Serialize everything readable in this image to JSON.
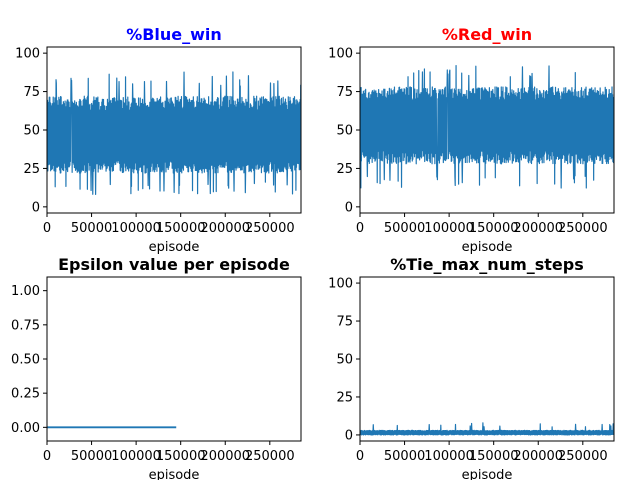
{
  "chart_data": [
    {
      "type": "line",
      "title": "%Blue_win",
      "title_color": "#0000ff",
      "xlabel": "episode",
      "ylabel": "",
      "xlim": [
        0,
        285000
      ],
      "ylim": [
        -4,
        104
      ],
      "xticks": [
        0,
        50000,
        100000,
        150000,
        200000,
        250000
      ],
      "xtick_labels": [
        "0",
        "50000",
        "100000",
        "150000",
        "200000",
        "250000"
      ],
      "yticks": [
        0,
        25,
        50,
        75,
        100
      ],
      "ytick_labels": [
        "0",
        "25",
        "50",
        "75",
        "100"
      ],
      "series": [
        {
          "color": "#1f77b4",
          "style": "dense_oscillation",
          "x_range": [
            0,
            285000
          ],
          "band": [
            22,
            72
          ],
          "extremes": [
            8,
            88
          ],
          "mean": 45,
          "points": 900
        }
      ]
    },
    {
      "type": "line",
      "title": "%Red_win",
      "title_color": "#ff0000",
      "xlabel": "episode",
      "ylabel": "",
      "xlim": [
        0,
        285000
      ],
      "ylim": [
        -4,
        104
      ],
      "xticks": [
        0,
        50000,
        100000,
        150000,
        200000,
        250000
      ],
      "xtick_labels": [
        "0",
        "50000",
        "100000",
        "150000",
        "200000",
        "250000"
      ],
      "yticks": [
        0,
        25,
        50,
        75,
        100
      ],
      "ytick_labels": [
        "0",
        "25",
        "50",
        "75",
        "100"
      ],
      "series": [
        {
          "color": "#1f77b4",
          "style": "dense_oscillation",
          "x_range": [
            0,
            285000
          ],
          "band": [
            28,
            78
          ],
          "extremes": [
            12,
            92
          ],
          "mean": 53,
          "points": 900
        }
      ]
    },
    {
      "type": "line",
      "title": "Epsilon value per episode",
      "title_color": "#000000",
      "xlabel": "episode",
      "ylabel": "",
      "xlim": [
        0,
        285000
      ],
      "ylim": [
        -0.1,
        1.1
      ],
      "xticks": [
        0,
        50000,
        100000,
        150000,
        200000,
        250000
      ],
      "xtick_labels": [
        "0",
        "50000",
        "100000",
        "150000",
        "200000",
        "250000"
      ],
      "yticks": [
        0,
        0.25,
        0.5,
        0.75,
        1.0
      ],
      "ytick_labels": [
        "0.00",
        "0.25",
        "0.50",
        "0.75",
        "1.00"
      ],
      "series": [
        {
          "color": "#1f77b4",
          "style": "line",
          "x": [
            0,
            145000
          ],
          "y": [
            0,
            0
          ]
        }
      ]
    },
    {
      "type": "line",
      "title": "%Tie_max_num_steps",
      "title_color": "#000000",
      "xlabel": "episode",
      "ylabel": "",
      "xlim": [
        0,
        285000
      ],
      "ylim": [
        -4,
        104
      ],
      "xticks": [
        0,
        50000,
        100000,
        150000,
        200000,
        250000
      ],
      "xtick_labels": [
        "0",
        "50000",
        "100000",
        "150000",
        "200000",
        "250000"
      ],
      "yticks": [
        0,
        25,
        50,
        75,
        100
      ],
      "ytick_labels": [
        "0",
        "25",
        "50",
        "75",
        "100"
      ],
      "series": [
        {
          "color": "#1f77b4",
          "style": "dense_oscillation",
          "x_range": [
            0,
            285000
          ],
          "band": [
            0,
            3
          ],
          "extremes": [
            0,
            8
          ],
          "mean": 1.5,
          "points": 900
        }
      ]
    }
  ]
}
